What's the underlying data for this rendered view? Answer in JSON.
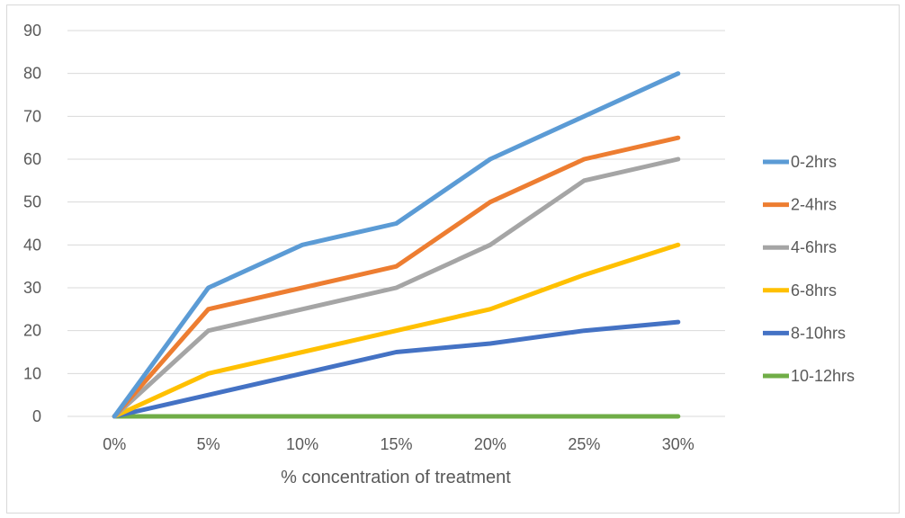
{
  "chart_data": {
    "type": "line",
    "title": "",
    "xlabel": "% concentration of treatment",
    "ylabel": "",
    "categories": [
      "0%",
      "5%",
      "10%",
      "15%",
      "20%",
      "25%",
      "30%"
    ],
    "ylim": [
      0,
      90
    ],
    "yticks": [
      0,
      10,
      20,
      30,
      40,
      50,
      60,
      70,
      80,
      90
    ],
    "grid": true,
    "legend_position": "right",
    "series": [
      {
        "name": "0-2hrs",
        "color": "#5B9BD5",
        "values": [
          0,
          30,
          40,
          45,
          60,
          70,
          80
        ]
      },
      {
        "name": "2-4hrs",
        "color": "#ED7D31",
        "values": [
          0,
          25,
          30,
          35,
          50,
          60,
          65
        ]
      },
      {
        "name": "4-6hrs",
        "color": "#A5A5A5",
        "values": [
          0,
          20,
          25,
          30,
          40,
          55,
          60
        ]
      },
      {
        "name": "6-8hrs",
        "color": "#FFC000",
        "values": [
          0,
          10,
          15,
          20,
          25,
          33,
          40
        ]
      },
      {
        "name": "8-10hrs",
        "color": "#4472C4",
        "values": [
          0,
          5,
          10,
          15,
          17,
          20,
          22
        ]
      },
      {
        "name": "10-12hrs",
        "color": "#70AD47",
        "values": [
          0,
          0,
          0,
          0,
          0,
          0,
          0
        ]
      }
    ]
  }
}
